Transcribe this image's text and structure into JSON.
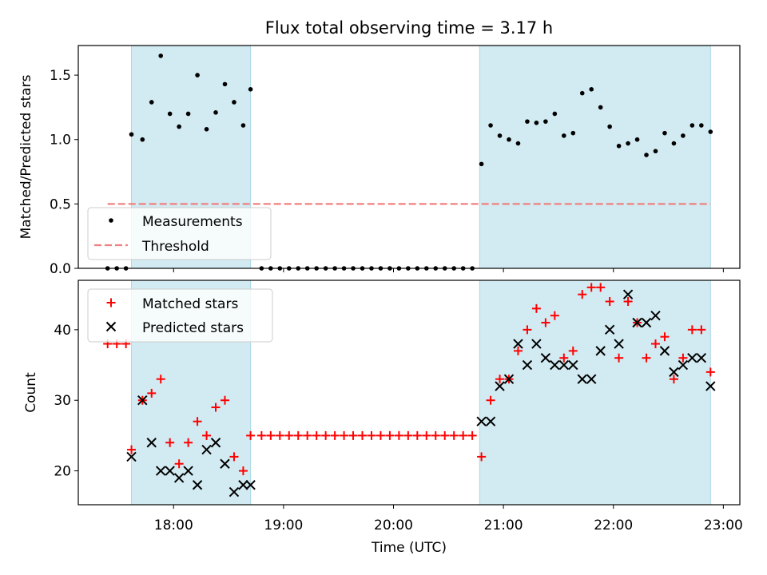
{
  "title": "Flux total observing time = 3.17 h",
  "chart_data": [
    {
      "type": "scatter",
      "panel": "top",
      "ylabel": "Matched/Predicted stars",
      "ylim": [
        0,
        1.73
      ],
      "xlim": [
        "17:08",
        "23:09"
      ],
      "yticks": [
        0.0,
        0.5,
        1.0,
        1.5
      ],
      "ytick_labels": [
        "0.0",
        "0.5",
        "1.0",
        "1.5"
      ],
      "shaded_regions": [
        [
          "17:37",
          "18:42"
        ],
        [
          "20:47",
          "22:53"
        ]
      ],
      "shade_color": "#add8e6",
      "legend": {
        "position": "lower-left",
        "entries": [
          "Measurements",
          "Threshold"
        ]
      },
      "threshold": {
        "name": "Threshold",
        "value": 0.5,
        "x_range": [
          "17:24",
          "22:53"
        ],
        "color": "#f08080"
      },
      "series": [
        {
          "name": "Measurements",
          "marker": "dot",
          "color": "#000000",
          "points": [
            [
              "17:24",
              0
            ],
            [
              "17:29",
              0
            ],
            [
              "17:34",
              0
            ],
            [
              "17:37",
              1.04
            ],
            [
              "17:43",
              1.0
            ],
            [
              "17:48",
              1.29
            ],
            [
              "17:53",
              1.65
            ],
            [
              "17:58",
              1.2
            ],
            [
              "18:03",
              1.1
            ],
            [
              "18:08",
              1.2
            ],
            [
              "18:13",
              1.5
            ],
            [
              "18:18",
              1.08
            ],
            [
              "18:23",
              1.21
            ],
            [
              "18:28",
              1.43
            ],
            [
              "18:33",
              1.29
            ],
            [
              "18:38",
              1.11
            ],
            [
              "18:42",
              1.39
            ],
            [
              "18:48",
              0
            ],
            [
              "18:53",
              0
            ],
            [
              "18:58",
              0
            ],
            [
              "19:03",
              0
            ],
            [
              "19:08",
              0
            ],
            [
              "19:13",
              0
            ],
            [
              "19:18",
              0
            ],
            [
              "19:23",
              0
            ],
            [
              "19:28",
              0
            ],
            [
              "19:33",
              0
            ],
            [
              "19:38",
              0
            ],
            [
              "19:43",
              0
            ],
            [
              "19:48",
              0
            ],
            [
              "19:53",
              0
            ],
            [
              "19:58",
              0
            ],
            [
              "20:03",
              0
            ],
            [
              "20:08",
              0
            ],
            [
              "20:13",
              0
            ],
            [
              "20:18",
              0
            ],
            [
              "20:23",
              0
            ],
            [
              "20:28",
              0
            ],
            [
              "20:33",
              0
            ],
            [
              "20:38",
              0
            ],
            [
              "20:43",
              0
            ],
            [
              "20:48",
              0.81
            ],
            [
              "20:53",
              1.11
            ],
            [
              "20:58",
              1.03
            ],
            [
              "21:03",
              1.0
            ],
            [
              "21:08",
              0.97
            ],
            [
              "21:13",
              1.14
            ],
            [
              "21:18",
              1.13
            ],
            [
              "21:23",
              1.14
            ],
            [
              "21:28",
              1.2
            ],
            [
              "21:33",
              1.03
            ],
            [
              "21:38",
              1.05
            ],
            [
              "21:43",
              1.36
            ],
            [
              "21:48",
              1.39
            ],
            [
              "21:53",
              1.25
            ],
            [
              "21:58",
              1.1
            ],
            [
              "22:03",
              0.95
            ],
            [
              "22:08",
              0.97
            ],
            [
              "22:13",
              1.0
            ],
            [
              "22:18",
              0.88
            ],
            [
              "22:23",
              0.91
            ],
            [
              "22:28",
              1.05
            ],
            [
              "22:33",
              0.97
            ],
            [
              "22:38",
              1.03
            ],
            [
              "22:43",
              1.11
            ],
            [
              "22:48",
              1.11
            ],
            [
              "22:53",
              1.06
            ]
          ]
        }
      ]
    },
    {
      "type": "scatter",
      "panel": "bottom",
      "xlabel": "Time (UTC)",
      "ylabel": "Count",
      "ylim": [
        15.2,
        47.0
      ],
      "xlim": [
        "17:08",
        "23:09"
      ],
      "yticks": [
        20,
        30,
        40
      ],
      "ytick_labels": [
        "20",
        "30",
        "40"
      ],
      "xtick_labels": [
        "18:00",
        "19:00",
        "20:00",
        "21:00",
        "22:00",
        "23:00"
      ],
      "shaded_regions": [
        [
          "17:37",
          "18:42"
        ],
        [
          "20:47",
          "22:53"
        ]
      ],
      "shade_color": "#add8e6",
      "legend": {
        "position": "upper-left",
        "entries": [
          "Matched stars",
          "Predicted stars"
        ]
      },
      "series": [
        {
          "name": "Matched stars",
          "marker": "plus",
          "color": "#ff0000",
          "points": [
            [
              "17:24",
              38
            ],
            [
              "17:29",
              38
            ],
            [
              "17:34",
              38
            ],
            [
              "17:37",
              23
            ],
            [
              "17:43",
              30
            ],
            [
              "17:48",
              31
            ],
            [
              "17:53",
              33
            ],
            [
              "17:58",
              24
            ],
            [
              "18:03",
              21
            ],
            [
              "18:08",
              24
            ],
            [
              "18:13",
              27
            ],
            [
              "18:18",
              25
            ],
            [
              "18:23",
              29
            ],
            [
              "18:28",
              30
            ],
            [
              "18:33",
              22
            ],
            [
              "18:38",
              20
            ],
            [
              "18:42",
              25
            ],
            [
              "18:48",
              25
            ],
            [
              "18:53",
              25
            ],
            [
              "18:58",
              25
            ],
            [
              "19:03",
              25
            ],
            [
              "19:08",
              25
            ],
            [
              "19:13",
              25
            ],
            [
              "19:18",
              25
            ],
            [
              "19:23",
              25
            ],
            [
              "19:28",
              25
            ],
            [
              "19:33",
              25
            ],
            [
              "19:38",
              25
            ],
            [
              "19:43",
              25
            ],
            [
              "19:48",
              25
            ],
            [
              "19:53",
              25
            ],
            [
              "19:58",
              25
            ],
            [
              "20:03",
              25
            ],
            [
              "20:08",
              25
            ],
            [
              "20:13",
              25
            ],
            [
              "20:18",
              25
            ],
            [
              "20:23",
              25
            ],
            [
              "20:28",
              25
            ],
            [
              "20:33",
              25
            ],
            [
              "20:38",
              25
            ],
            [
              "20:43",
              25
            ],
            [
              "20:48",
              22
            ],
            [
              "20:53",
              30
            ],
            [
              "20:58",
              33
            ],
            [
              "21:03",
              33
            ],
            [
              "21:08",
              37
            ],
            [
              "21:13",
              40
            ],
            [
              "21:18",
              43
            ],
            [
              "21:23",
              41
            ],
            [
              "21:28",
              42
            ],
            [
              "21:33",
              36
            ],
            [
              "21:38",
              37
            ],
            [
              "21:43",
              45
            ],
            [
              "21:48",
              46
            ],
            [
              "21:53",
              46
            ],
            [
              "21:58",
              44
            ],
            [
              "22:03",
              36
            ],
            [
              "22:08",
              44
            ],
            [
              "22:13",
              41
            ],
            [
              "22:18",
              36
            ],
            [
              "22:23",
              38
            ],
            [
              "22:28",
              39
            ],
            [
              "22:33",
              33
            ],
            [
              "22:38",
              36
            ],
            [
              "22:43",
              40
            ],
            [
              "22:48",
              40
            ],
            [
              "22:53",
              34
            ]
          ]
        },
        {
          "name": "Predicted stars",
          "marker": "x",
          "color": "#000000",
          "points": [
            [
              "17:37",
              22
            ],
            [
              "17:43",
              30
            ],
            [
              "17:48",
              24
            ],
            [
              "17:53",
              20
            ],
            [
              "17:58",
              20
            ],
            [
              "18:03",
              19
            ],
            [
              "18:08",
              20
            ],
            [
              "18:13",
              18
            ],
            [
              "18:18",
              23
            ],
            [
              "18:23",
              24
            ],
            [
              "18:28",
              21
            ],
            [
              "18:33",
              17
            ],
            [
              "18:38",
              18
            ],
            [
              "18:42",
              18
            ],
            [
              "20:48",
              27
            ],
            [
              "20:53",
              27
            ],
            [
              "20:58",
              32
            ],
            [
              "21:03",
              33
            ],
            [
              "21:08",
              38
            ],
            [
              "21:13",
              35
            ],
            [
              "21:18",
              38
            ],
            [
              "21:23",
              36
            ],
            [
              "21:28",
              35
            ],
            [
              "21:33",
              35
            ],
            [
              "21:38",
              35
            ],
            [
              "21:43",
              33
            ],
            [
              "21:48",
              33
            ],
            [
              "21:53",
              37
            ],
            [
              "21:58",
              40
            ],
            [
              "22:03",
              38
            ],
            [
              "22:08",
              45
            ],
            [
              "22:13",
              41
            ],
            [
              "22:18",
              41
            ],
            [
              "22:23",
              42
            ],
            [
              "22:28",
              37
            ],
            [
              "22:33",
              34
            ],
            [
              "22:38",
              35
            ],
            [
              "22:43",
              36
            ],
            [
              "22:48",
              36
            ],
            [
              "22:53",
              32
            ]
          ]
        }
      ]
    }
  ]
}
